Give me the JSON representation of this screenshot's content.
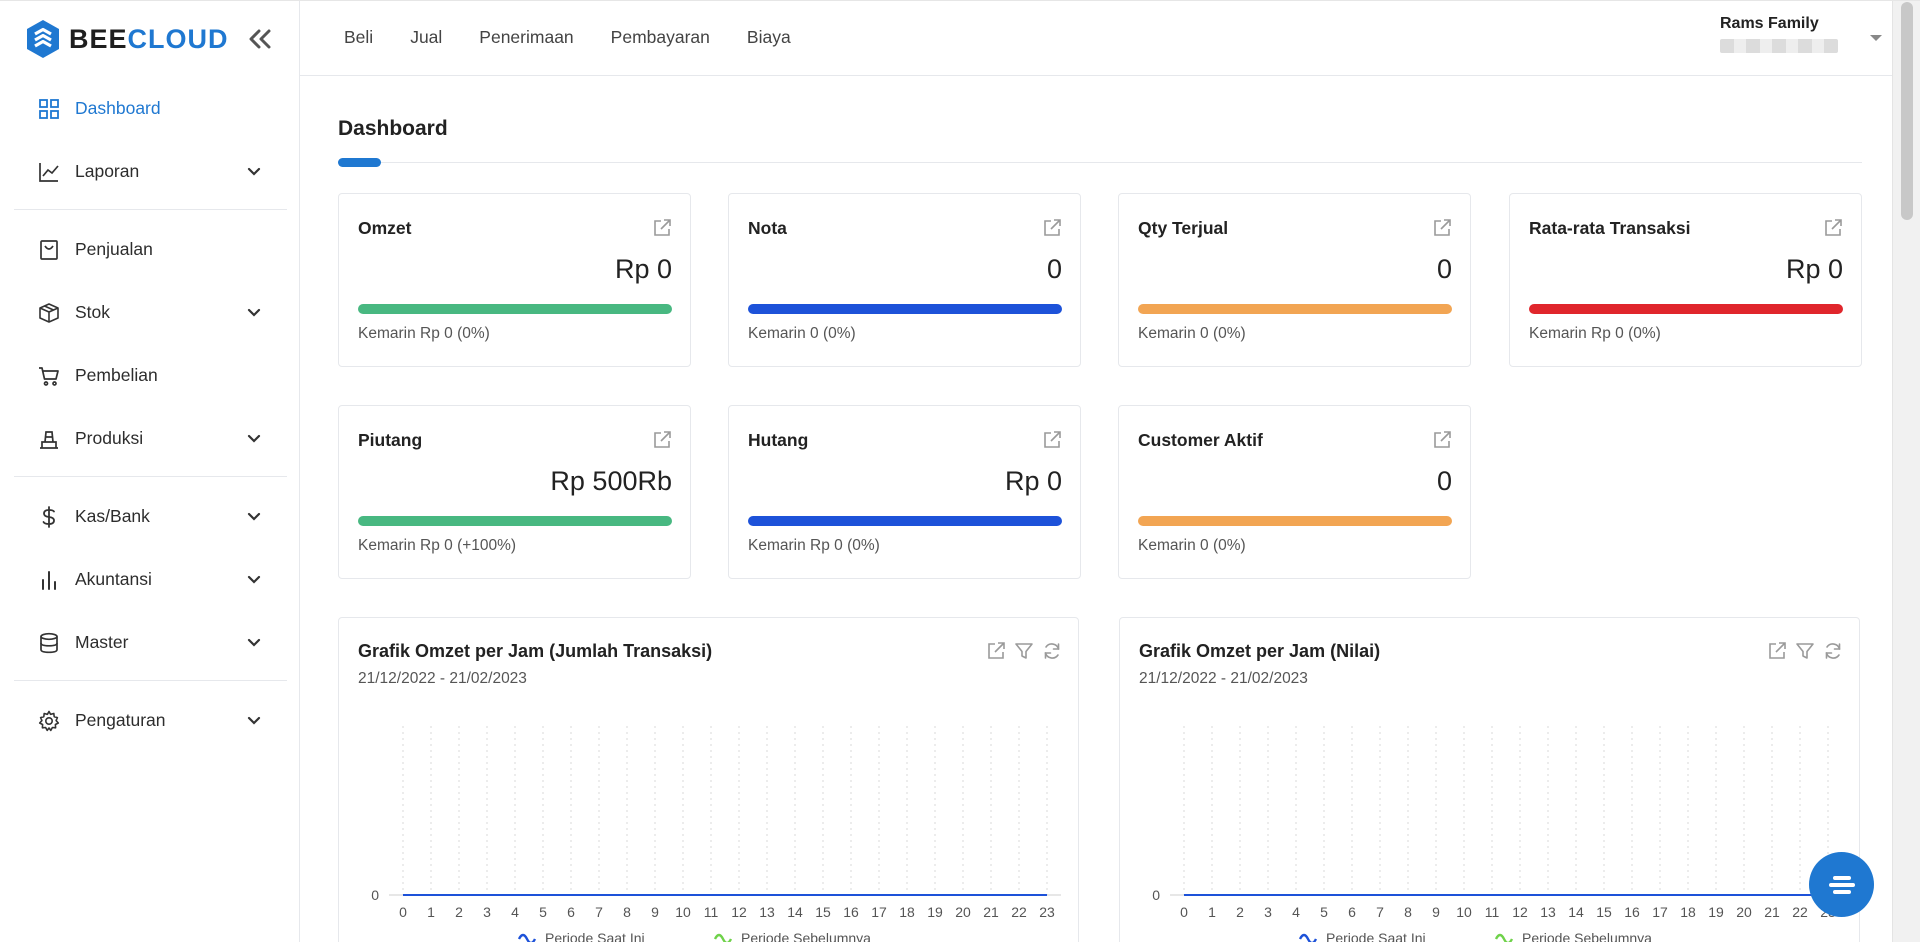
{
  "brand": {
    "prefix": "BEE",
    "suffix": "CLOUD"
  },
  "sidebar": {
    "items": [
      {
        "label": "Dashboard",
        "icon": "dashboard-grid-icon",
        "active": true,
        "has_children": false
      },
      {
        "label": "Laporan",
        "icon": "line-chart-icon",
        "active": false,
        "has_children": true
      },
      {
        "label": "Penjualan",
        "icon": "bag-icon",
        "active": false,
        "has_children": false
      },
      {
        "label": "Stok",
        "icon": "box-icon",
        "active": false,
        "has_children": true
      },
      {
        "label": "Pembelian",
        "icon": "cart-icon",
        "active": false,
        "has_children": false
      },
      {
        "label": "Produksi",
        "icon": "factory-icon",
        "active": false,
        "has_children": true
      },
      {
        "label": "Kas/Bank",
        "icon": "dollar-icon",
        "active": false,
        "has_children": true
      },
      {
        "label": "Akuntansi",
        "icon": "bar-chart-icon",
        "active": false,
        "has_children": true
      },
      {
        "label": "Master",
        "icon": "database-icon",
        "active": false,
        "has_children": true
      },
      {
        "label": "Pengaturan",
        "icon": "gear-icon",
        "active": false,
        "has_children": true
      }
    ]
  },
  "topnav": {
    "items": [
      "Beli",
      "Jual",
      "Penerimaan",
      "Pembayaran",
      "Biaya"
    ]
  },
  "user": {
    "name": "Rams Family"
  },
  "page": {
    "title": "Dashboard"
  },
  "cards": [
    {
      "title": "Omzet",
      "value": "Rp 0",
      "sub": "Kemarin Rp 0 (0%)",
      "color": "#48b881"
    },
    {
      "title": "Nota",
      "value": "0",
      "sub": "Kemarin 0 (0%)",
      "color": "#1d52d9"
    },
    {
      "title": "Qty Terjual",
      "value": "0",
      "sub": "Kemarin 0 (0%)",
      "color": "#f2a553"
    },
    {
      "title": "Rata-rata Transaksi",
      "value": "Rp 0",
      "sub": "Kemarin Rp 0 (0%)",
      "color": "#e0262c"
    },
    {
      "title": "Piutang",
      "value": "Rp 500Rb",
      "sub": "Kemarin Rp 0 (+100%)",
      "color": "#48b881"
    },
    {
      "title": "Hutang",
      "value": "Rp 0",
      "sub": "Kemarin Rp 0 (0%)",
      "color": "#1d52d9"
    },
    {
      "title": "Customer Aktif",
      "value": "0",
      "sub": "Kemarin 0 (0%)",
      "color": "#f2a553"
    }
  ],
  "chart_data": [
    {
      "type": "line",
      "title": "Grafik Omzet per Jam (Jumlah Transaksi)",
      "subtitle": "21/12/2022 - 21/02/2023",
      "x": [
        0,
        1,
        2,
        3,
        4,
        5,
        6,
        7,
        8,
        9,
        10,
        11,
        12,
        13,
        14,
        15,
        16,
        17,
        18,
        19,
        20,
        21,
        22,
        23
      ],
      "y_ticks": [
        "0"
      ],
      "series": [
        {
          "name": "Periode Saat Ini",
          "color": "#1d52d9",
          "values": [
            0,
            0,
            0,
            0,
            0,
            0,
            0,
            0,
            0,
            0,
            0,
            0,
            0,
            0,
            0,
            0,
            0,
            0,
            0,
            0,
            0,
            0,
            0,
            0
          ]
        },
        {
          "name": "Periode Sebelumnya",
          "color": "#6fd24a",
          "values": [
            0,
            0,
            0,
            0,
            0,
            0,
            0,
            0,
            0,
            0,
            0,
            0,
            0,
            0,
            0,
            0,
            0,
            0,
            0,
            0,
            0,
            0,
            0,
            0
          ]
        }
      ],
      "grid": "vertical-dotted"
    },
    {
      "type": "line",
      "title": "Grafik Omzet per Jam (Nilai)",
      "subtitle": "21/12/2022 - 21/02/2023",
      "x": [
        0,
        1,
        2,
        3,
        4,
        5,
        6,
        7,
        8,
        9,
        10,
        11,
        12,
        13,
        14,
        15,
        16,
        17,
        18,
        19,
        20,
        21,
        22,
        23
      ],
      "y_ticks": [
        "0"
      ],
      "series": [
        {
          "name": "Periode Saat Ini",
          "color": "#1d52d9",
          "values": [
            0,
            0,
            0,
            0,
            0,
            0,
            0,
            0,
            0,
            0,
            0,
            0,
            0,
            0,
            0,
            0,
            0,
            0,
            0,
            0,
            0,
            0,
            0,
            0
          ]
        },
        {
          "name": "Periode Sebelumnya",
          "color": "#6fd24a",
          "values": [
            0,
            0,
            0,
            0,
            0,
            0,
            0,
            0,
            0,
            0,
            0,
            0,
            0,
            0,
            0,
            0,
            0,
            0,
            0,
            0,
            0,
            0,
            0,
            0
          ]
        }
      ],
      "grid": "vertical-dotted"
    }
  ]
}
